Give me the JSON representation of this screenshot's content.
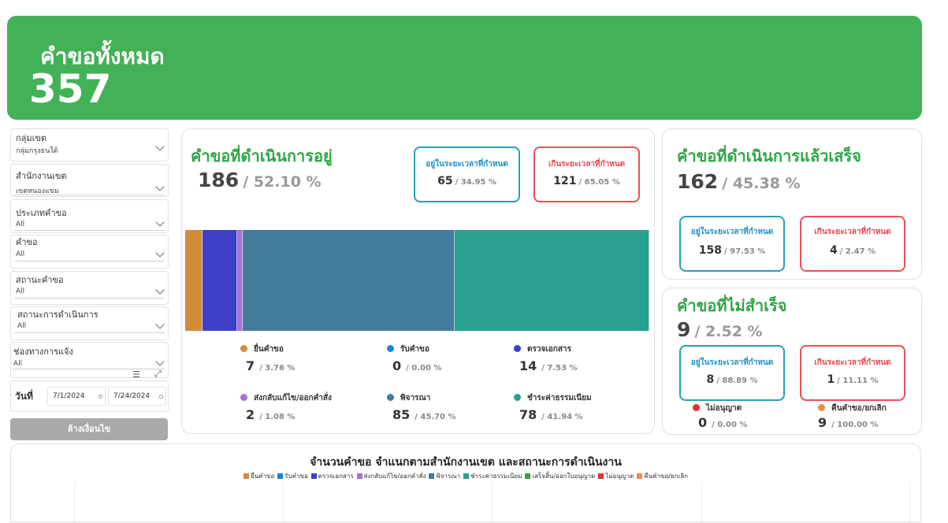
{
  "header": {
    "title": "คำขอทั้งหมด",
    "total": "357",
    "color": "#43b156"
  },
  "filters": [
    {
      "label": "กลุ่มเขต",
      "value": "กลุ่มกรุงธนใต้"
    },
    {
      "label": "สำนักงานเขต",
      "value": "เขตหนองแขม"
    },
    {
      "label": "ประเภทคำขอ",
      "value": "All"
    },
    {
      "label": "คำขอ",
      "value": "All"
    },
    {
      "label": "สถานะคำขอ",
      "value": "All"
    },
    {
      "label": "สถานะการดำเนินการ",
      "value": "All"
    },
    {
      "label": "ช่องทางการแจ้ง",
      "value": "All"
    }
  ],
  "date_filter": {
    "label": "วันที่",
    "start": "7/1/2024",
    "end": "7/24/2024"
  },
  "clear_button": "ล้างเงื่อนไข",
  "in_progress": {
    "title": "คำขอที่ดำเนินการอยู่",
    "count": "186",
    "pct": "/ 52.10 %",
    "on_time": {
      "title": "อยู่ในระยะเวลาที่กำหนด",
      "value": "65",
      "pct": "/ 34.95 %"
    },
    "overdue": {
      "title": "เกินระยะเวลาที่กำหนด",
      "value": "121",
      "pct": "/ 65.05 %"
    },
    "segments": [
      {
        "label": "ยื่นคำขอ",
        "value": "7",
        "pct": "/ 3.76 %",
        "share": 3.76,
        "color": "#d18c3a"
      },
      {
        "label": "รับคำขอ",
        "value": "0",
        "pct": "/ 0.00 %",
        "share": 0,
        "color": "#0f87e0"
      },
      {
        "label": "ตรวจเอกสาร",
        "value": "14",
        "pct": "/ 7.53 %",
        "share": 7.53,
        "color": "#3e3fc8"
      },
      {
        "label": "ส่งกลับแก้ไข/ออกคำสั่ง",
        "value": "2",
        "pct": "/ 1.08 %",
        "share": 1.08,
        "color": "#a86fd4"
      },
      {
        "label": "พิจารณา",
        "value": "85",
        "pct": "/ 45.70 %",
        "share": 45.7,
        "color": "#437b9c"
      },
      {
        "label": "ชำระค่าธรรมเนียม",
        "value": "78",
        "pct": "/ 41.94 %",
        "share": 41.94,
        "color": "#2aa08e"
      }
    ]
  },
  "completed": {
    "title": "คำขอที่ดำเนินการแล้วเสร็จ",
    "count": "162",
    "pct": "/ 45.38 %",
    "on_time": {
      "title": "อยู่ในระยะเวลาที่กำหนด",
      "value": "158",
      "pct": "/ 97.53 %"
    },
    "overdue": {
      "title": "เกินระยะเวลาที่กำหนด",
      "value": "4",
      "pct": "/ 2.47 %"
    }
  },
  "failed": {
    "title": "คำขอที่ไม่สำเร็จ",
    "count": "9",
    "pct": "/ 2.52 %",
    "on_time": {
      "title": "อยู่ในระยะเวลาที่กำหนด",
      "value": "8",
      "pct": "/ 88.89 %"
    },
    "overdue": {
      "title": "เกินระยะเวลาที่กำหนด",
      "value": "1",
      "pct": "/ 11.11 %"
    },
    "not_approved": {
      "label": "ไม่อนุญาต",
      "value": "0",
      "pct": "/ 0.00 %",
      "color": "#e03030"
    },
    "cancelled": {
      "label": "คืนคำขอ/ยกเลิก",
      "value": "9",
      "pct": "/ 100.00 %",
      "color": "#f08a4b"
    }
  },
  "bottom_chart": {
    "title": "จำนวนคำขอ  จำแนกตามสำนักงานเขต และสถานะการดำเนินงาน",
    "legend": [
      {
        "label": "ยื่นคำขอ",
        "color": "#d18c3a"
      },
      {
        "label": "รับคำขอ",
        "color": "#0f87e0"
      },
      {
        "label": "ตรวจเอกสาร",
        "color": "#3e3fc8"
      },
      {
        "label": "ส่งกลับแก้ไข/ออกคำสั่ง",
        "color": "#a86fd4"
      },
      {
        "label": "พิจารณา",
        "color": "#437b9c"
      },
      {
        "label": "ชำระค่าธรรมเนียม",
        "color": "#2aa08e"
      },
      {
        "label": "เสร็จสิ้น/ออกใบอนุญาต",
        "color": "#3f9b4a"
      },
      {
        "label": "ไม่อนุญาต",
        "color": "#e03030"
      },
      {
        "label": "คืนคำขอ/ยกเลิก",
        "color": "#f08a4b"
      }
    ]
  }
}
